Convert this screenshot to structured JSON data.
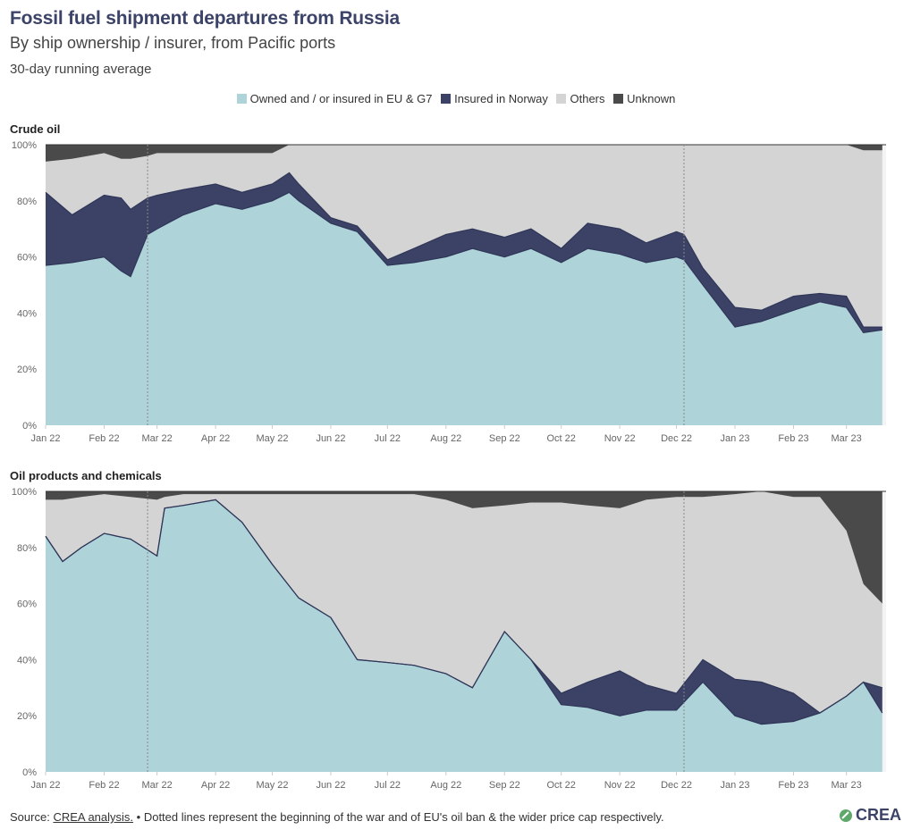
{
  "header": {
    "title": "Fossil fuel shipment departures from Russia",
    "subtitle": "By ship ownership / insurer, from Pacific ports",
    "note": "30-day running average"
  },
  "legend": [
    {
      "label": "Owned and / or insured in EU & G7",
      "color": "#aed4da"
    },
    {
      "label": "Insured in Norway",
      "color": "#3b4266"
    },
    {
      "label": "Others",
      "color": "#d4d4d4"
    },
    {
      "label": "Unknown",
      "color": "#4a4a4a"
    }
  ],
  "footer": {
    "source_prefix": "Source:",
    "source_link": "CREA analysis.",
    "note": "• Dotted lines represent the beginning of the war and of EU's oil ban & the wider price cap respectively."
  },
  "logo": {
    "text": "CREA"
  },
  "chart_data": [
    {
      "type": "area",
      "stacked": true,
      "title": "Crude oil",
      "x_ticks": [
        "Jan 22",
        "Feb 22",
        "Mar 22",
        "Apr 22",
        "May 22",
        "Jun 22",
        "Jul 22",
        "Aug 22",
        "Sep 22",
        "Oct 22",
        "Nov 22",
        "Dec 22",
        "Jan 23",
        "Feb 23",
        "Mar 23"
      ],
      "y_ticks": [
        "0%",
        "20%",
        "40%",
        "60%",
        "80%",
        "100%"
      ],
      "ylim": [
        0,
        100
      ],
      "x": [
        "2022-01-01",
        "2022-01-15",
        "2022-02-01",
        "2022-02-10",
        "2022-02-15",
        "2022-02-24",
        "2022-03-01",
        "2022-03-15",
        "2022-04-01",
        "2022-04-15",
        "2022-05-01",
        "2022-05-10",
        "2022-05-15",
        "2022-06-01",
        "2022-06-15",
        "2022-07-01",
        "2022-07-15",
        "2022-08-01",
        "2022-08-15",
        "2022-09-01",
        "2022-09-15",
        "2022-10-01",
        "2022-10-15",
        "2022-11-01",
        "2022-11-15",
        "2022-12-01",
        "2022-12-05",
        "2022-12-15",
        "2023-01-01",
        "2023-01-15",
        "2023-02-01",
        "2023-02-15",
        "2023-03-01",
        "2023-03-10",
        "2023-03-20"
      ],
      "series": [
        {
          "name": "Owned and / or insured in EU & G7",
          "values": [
            57,
            58,
            60,
            55,
            53,
            68,
            70,
            75,
            79,
            77,
            80,
            83,
            80,
            72,
            69,
            57,
            58,
            60,
            63,
            60,
            63,
            58,
            63,
            61,
            58,
            60,
            59,
            50,
            35,
            37,
            41,
            44,
            42,
            33,
            34
          ]
        },
        {
          "name": "Insured in Norway",
          "values": [
            26,
            17,
            22,
            26,
            24,
            13,
            12,
            9,
            7,
            6,
            6,
            7,
            6,
            2,
            2,
            2,
            5,
            8,
            7,
            7,
            7,
            5,
            9,
            9,
            7,
            9,
            9,
            6,
            7,
            4,
            5,
            3,
            4,
            2,
            1
          ]
        },
        {
          "name": "Others",
          "values": [
            11,
            20,
            15,
            14,
            18,
            15,
            15,
            13,
            11,
            14,
            11,
            10,
            14,
            26,
            29,
            41,
            37,
            32,
            30,
            33,
            30,
            37,
            28,
            30,
            35,
            31,
            32,
            44,
            58,
            59,
            54,
            53,
            54,
            63,
            63
          ]
        },
        {
          "name": "Unknown",
          "values": [
            6,
            5,
            3,
            5,
            5,
            4,
            3,
            3,
            3,
            3,
            3,
            0,
            0,
            0,
            0,
            0,
            0,
            0,
            0,
            0,
            0,
            0,
            0,
            0,
            0,
            0,
            0,
            0,
            0,
            0,
            0,
            0,
            0,
            2,
            2
          ]
        }
      ]
    },
    {
      "type": "area",
      "stacked": true,
      "title": "Oil products and chemicals",
      "x_ticks": [
        "Jan 22",
        "Feb 22",
        "Mar 22",
        "Apr 22",
        "May 22",
        "Jun 22",
        "Jul 22",
        "Aug 22",
        "Sep 22",
        "Oct 22",
        "Nov 22",
        "Dec 22",
        "Jan 23",
        "Feb 23",
        "Mar 23"
      ],
      "y_ticks": [
        "0%",
        "20%",
        "40%",
        "60%",
        "80%",
        "100%"
      ],
      "ylim": [
        0,
        100
      ],
      "x": [
        "2022-01-01",
        "2022-01-10",
        "2022-01-20",
        "2022-02-01",
        "2022-02-15",
        "2022-03-01",
        "2022-03-05",
        "2022-03-15",
        "2022-04-01",
        "2022-04-15",
        "2022-05-01",
        "2022-05-15",
        "2022-06-01",
        "2022-06-15",
        "2022-07-01",
        "2022-07-15",
        "2022-08-01",
        "2022-08-15",
        "2022-09-01",
        "2022-09-15",
        "2022-10-01",
        "2022-10-15",
        "2022-11-01",
        "2022-11-15",
        "2022-12-01",
        "2022-12-15",
        "2023-01-01",
        "2023-01-15",
        "2023-02-01",
        "2023-02-15",
        "2023-03-01",
        "2023-03-10",
        "2023-03-20"
      ],
      "series": [
        {
          "name": "Owned and / or insured in EU & G7",
          "values": [
            84,
            75,
            80,
            85,
            83,
            77,
            94,
            95,
            97,
            89,
            74,
            62,
            55,
            40,
            39,
            38,
            35,
            30,
            50,
            40,
            24,
            23,
            20,
            22,
            22,
            32,
            20,
            17,
            18,
            21,
            27,
            32,
            21
          ]
        },
        {
          "name": "Insured in Norway",
          "values": [
            0,
            0,
            0,
            0,
            0,
            0,
            0,
            0,
            0,
            0,
            0,
            0,
            0,
            0,
            0,
            0,
            0,
            0,
            0,
            0,
            4,
            9,
            16,
            9,
            6,
            8,
            13,
            15,
            10,
            0,
            0,
            0,
            9
          ]
        },
        {
          "name": "Others",
          "values": [
            13,
            22,
            18,
            14,
            15,
            20,
            4,
            4,
            2,
            10,
            25,
            37,
            44,
            59,
            60,
            61,
            62,
            64,
            45,
            56,
            68,
            63,
            58,
            66,
            70,
            58,
            66,
            68,
            70,
            77,
            59,
            35,
            30
          ]
        },
        {
          "name": "Unknown",
          "values": [
            3,
            3,
            2,
            1,
            2,
            3,
            2,
            1,
            1,
            1,
            1,
            1,
            1,
            1,
            1,
            1,
            3,
            6,
            5,
            4,
            4,
            5,
            6,
            3,
            2,
            2,
            1,
            0,
            2,
            2,
            14,
            33,
            40
          ]
        }
      ]
    }
  ]
}
